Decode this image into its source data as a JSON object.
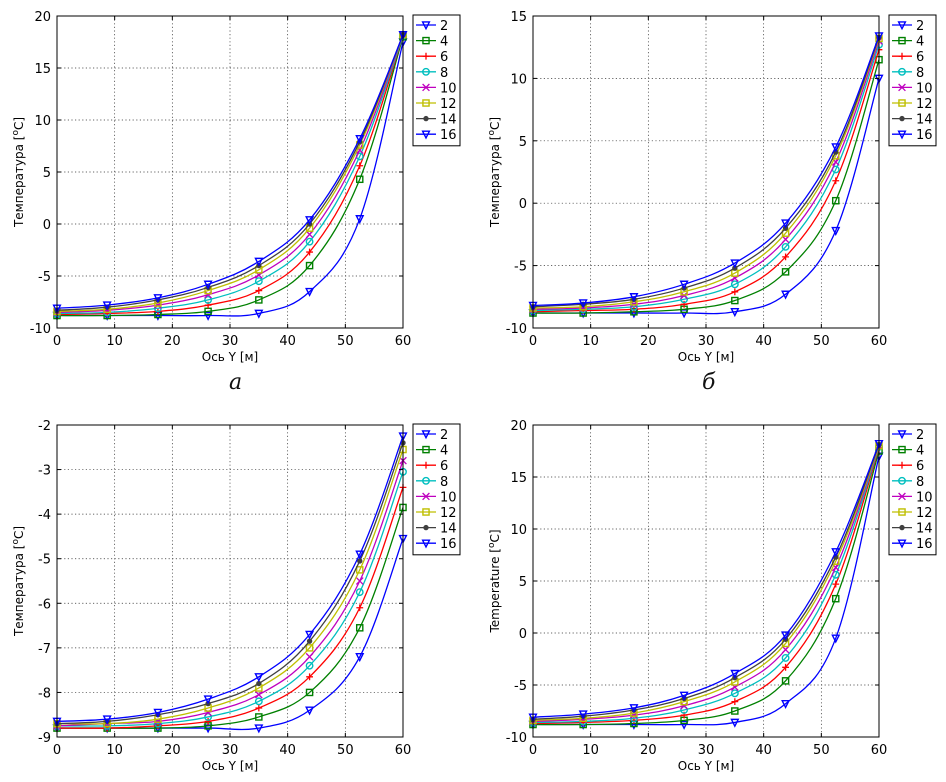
{
  "figure": {
    "panel_labels": [
      "а",
      "б"
    ]
  },
  "chart_data": [
    {
      "type": "line",
      "title": "",
      "xlabel": "Ось Y [м]",
      "ylabel_parts": [
        "Температура [",
        "o",
        "C]"
      ],
      "xlim": [
        0,
        60
      ],
      "ylim": [
        -10,
        20
      ],
      "xticks": [
        0,
        10,
        20,
        30,
        40,
        50,
        60
      ],
      "yticks": [
        -10,
        -5,
        0,
        5,
        10,
        15,
        20
      ],
      "grid": true,
      "legend_position": "top-right-outside",
      "x": [
        0,
        8.7,
        17.5,
        26.2,
        35,
        43.8,
        52.5,
        60
      ],
      "series": [
        {
          "name": "2",
          "color": "#0000ff",
          "marker": "triangle-down",
          "values": [
            -8.8,
            -8.8,
            -8.8,
            -8.8,
            -8.6,
            -6.5,
            0.5,
            17.5
          ]
        },
        {
          "name": "4",
          "color": "#008000",
          "marker": "square",
          "values": [
            -8.8,
            -8.8,
            -8.7,
            -8.4,
            -7.3,
            -4.0,
            4.3,
            18.0
          ]
        },
        {
          "name": "6",
          "color": "#ff0000",
          "marker": "plus",
          "values": [
            -8.7,
            -8.6,
            -8.4,
            -7.8,
            -6.4,
            -2.7,
            5.6,
            18.1
          ]
        },
        {
          "name": "8",
          "color": "#00bfbf",
          "marker": "circle",
          "values": [
            -8.6,
            -8.5,
            -8.1,
            -7.3,
            -5.5,
            -1.7,
            6.5,
            18.1
          ]
        },
        {
          "name": "10",
          "color": "#bf00bf",
          "marker": "x",
          "values": [
            -8.5,
            -8.3,
            -7.8,
            -6.8,
            -4.9,
            -1.0,
            7.1,
            18.2
          ]
        },
        {
          "name": "12",
          "color": "#bfbf00",
          "marker": "square",
          "values": [
            -8.4,
            -8.2,
            -7.6,
            -6.4,
            -4.4,
            -0.4,
            7.6,
            18.2
          ]
        },
        {
          "name": "14",
          "color": "#404040",
          "marker": "dot",
          "values": [
            -8.3,
            -8.0,
            -7.3,
            -6.1,
            -4.0,
            0.0,
            7.9,
            18.2
          ]
        },
        {
          "name": "16",
          "color": "#0000ff",
          "marker": "triangle-down",
          "values": [
            -8.1,
            -7.8,
            -7.1,
            -5.8,
            -3.6,
            0.4,
            8.2,
            18.2
          ]
        }
      ]
    },
    {
      "type": "line",
      "title": "",
      "xlabel": "Ось Y [м]",
      "ylabel_parts": [
        "Температура [",
        "o",
        "C]"
      ],
      "xlim": [
        0,
        60
      ],
      "ylim": [
        -10,
        15
      ],
      "xticks": [
        0,
        10,
        20,
        30,
        40,
        50,
        60
      ],
      "yticks": [
        -10,
        -5,
        0,
        5,
        10,
        15
      ],
      "grid": true,
      "legend_position": "top-right-outside",
      "x": [
        0,
        8.7,
        17.5,
        26.2,
        35,
        43.8,
        52.5,
        60
      ],
      "series": [
        {
          "name": "2",
          "color": "#0000ff",
          "marker": "triangle-down",
          "values": [
            -8.8,
            -8.8,
            -8.8,
            -8.8,
            -8.7,
            -7.3,
            -2.2,
            10.0
          ]
        },
        {
          "name": "4",
          "color": "#008000",
          "marker": "square",
          "values": [
            -8.8,
            -8.8,
            -8.7,
            -8.5,
            -7.8,
            -5.5,
            0.2,
            11.5
          ]
        },
        {
          "name": "6",
          "color": "#ff0000",
          "marker": "plus",
          "values": [
            -8.7,
            -8.6,
            -8.5,
            -8.1,
            -7.1,
            -4.3,
            1.8,
            12.3
          ]
        },
        {
          "name": "8",
          "color": "#00bfbf",
          "marker": "circle",
          "values": [
            -8.6,
            -8.5,
            -8.3,
            -7.7,
            -6.5,
            -3.5,
            2.7,
            12.7
          ]
        },
        {
          "name": "10",
          "color": "#bf00bf",
          "marker": "x",
          "values": [
            -8.5,
            -8.4,
            -8.1,
            -7.4,
            -6.0,
            -2.9,
            3.3,
            13.0
          ]
        },
        {
          "name": "12",
          "color": "#bfbf00",
          "marker": "square",
          "values": [
            -8.4,
            -8.3,
            -7.9,
            -7.1,
            -5.6,
            -2.4,
            3.8,
            13.2
          ]
        },
        {
          "name": "14",
          "color": "#404040",
          "marker": "dot",
          "values": [
            -8.3,
            -8.1,
            -7.7,
            -6.8,
            -5.2,
            -2.0,
            4.1,
            13.3
          ]
        },
        {
          "name": "16",
          "color": "#0000ff",
          "marker": "triangle-down",
          "values": [
            -8.2,
            -8.0,
            -7.5,
            -6.5,
            -4.8,
            -1.6,
            4.5,
            13.4
          ]
        }
      ]
    },
    {
      "type": "line",
      "title": "",
      "xlabel": "Ось Y [м]",
      "ylabel_parts": [
        "Температура [",
        "o",
        "C]"
      ],
      "xlim": [
        0,
        60
      ],
      "ylim": [
        -9,
        -2
      ],
      "xticks": [
        0,
        10,
        20,
        30,
        40,
        50,
        60
      ],
      "yticks": [
        -9,
        -8,
        -7,
        -6,
        -5,
        -4,
        -3,
        -2
      ],
      "grid": true,
      "legend_position": "top-right-outside",
      "x": [
        0,
        8.7,
        17.5,
        26.2,
        35,
        43.8,
        52.5,
        60
      ],
      "series": [
        {
          "name": "2",
          "color": "#0000ff",
          "marker": "triangle-down",
          "values": [
            -8.8,
            -8.8,
            -8.8,
            -8.8,
            -8.8,
            -8.4,
            -7.2,
            -4.55
          ]
        },
        {
          "name": "4",
          "color": "#008000",
          "marker": "square",
          "values": [
            -8.8,
            -8.8,
            -8.8,
            -8.75,
            -8.55,
            -8.0,
            -6.55,
            -3.85
          ]
        },
        {
          "name": "6",
          "color": "#ff0000",
          "marker": "plus",
          "values": [
            -8.8,
            -8.8,
            -8.75,
            -8.65,
            -8.35,
            -7.65,
            -6.1,
            -3.4
          ]
        },
        {
          "name": "8",
          "color": "#00bfbf",
          "marker": "circle",
          "values": [
            -8.75,
            -8.75,
            -8.7,
            -8.55,
            -8.2,
            -7.4,
            -5.75,
            -3.05
          ]
        },
        {
          "name": "10",
          "color": "#bf00bf",
          "marker": "x",
          "values": [
            -8.75,
            -8.7,
            -8.65,
            -8.45,
            -8.05,
            -7.2,
            -5.5,
            -2.8
          ]
        },
        {
          "name": "12",
          "color": "#bfbf00",
          "marker": "square",
          "values": [
            -8.7,
            -8.7,
            -8.6,
            -8.35,
            -7.9,
            -7.0,
            -5.25,
            -2.55
          ]
        },
        {
          "name": "14",
          "color": "#404040",
          "marker": "dot",
          "values": [
            -8.7,
            -8.65,
            -8.5,
            -8.25,
            -7.8,
            -6.85,
            -5.05,
            -2.4
          ]
        },
        {
          "name": "16",
          "color": "#0000ff",
          "marker": "triangle-down",
          "values": [
            -8.65,
            -8.6,
            -8.45,
            -8.15,
            -7.65,
            -6.7,
            -4.9,
            -2.25
          ]
        }
      ]
    },
    {
      "type": "line",
      "title": "",
      "xlabel": "Ось Y [м]",
      "ylabel_parts": [
        "Temperature [",
        "o",
        "C]"
      ],
      "xlim": [
        0,
        60
      ],
      "ylim": [
        -10,
        20
      ],
      "xticks": [
        0,
        10,
        20,
        30,
        40,
        50,
        60
      ],
      "yticks": [
        -10,
        -5,
        0,
        5,
        10,
        15,
        20
      ],
      "grid": true,
      "legend_position": "top-right-outside",
      "x": [
        0,
        8.7,
        17.5,
        26.2,
        35,
        43.8,
        52.5,
        60
      ],
      "series": [
        {
          "name": "2",
          "color": "#0000ff",
          "marker": "triangle-down",
          "values": [
            -8.8,
            -8.8,
            -8.8,
            -8.8,
            -8.6,
            -6.8,
            -0.5,
            17.0
          ]
        },
        {
          "name": "4",
          "color": "#008000",
          "marker": "square",
          "values": [
            -8.8,
            -8.8,
            -8.7,
            -8.4,
            -7.5,
            -4.6,
            3.3,
            17.5
          ]
        },
        {
          "name": "6",
          "color": "#ff0000",
          "marker": "plus",
          "values": [
            -8.7,
            -8.6,
            -8.4,
            -7.9,
            -6.6,
            -3.3,
            4.7,
            17.8
          ]
        },
        {
          "name": "8",
          "color": "#00bfbf",
          "marker": "circle",
          "values": [
            -8.6,
            -8.5,
            -8.2,
            -7.4,
            -5.8,
            -2.4,
            5.6,
            17.9
          ]
        },
        {
          "name": "10",
          "color": "#bf00bf",
          "marker": "x",
          "values": [
            -8.5,
            -8.3,
            -7.9,
            -7.0,
            -5.2,
            -1.6,
            6.3,
            18.0
          ]
        },
        {
          "name": "12",
          "color": "#bfbf00",
          "marker": "square",
          "values": [
            -8.4,
            -8.2,
            -7.7,
            -6.6,
            -4.7,
            -1.0,
            6.9,
            18.0
          ]
        },
        {
          "name": "14",
          "color": "#404040",
          "marker": "dot",
          "values": [
            -8.3,
            -8.0,
            -7.4,
            -6.3,
            -4.3,
            -0.6,
            7.3,
            18.1
          ]
        },
        {
          "name": "16",
          "color": "#0000ff",
          "marker": "triangle-down",
          "values": [
            -8.1,
            -7.8,
            -7.2,
            -6.0,
            -3.9,
            -0.2,
            7.8,
            18.2
          ]
        }
      ]
    }
  ]
}
